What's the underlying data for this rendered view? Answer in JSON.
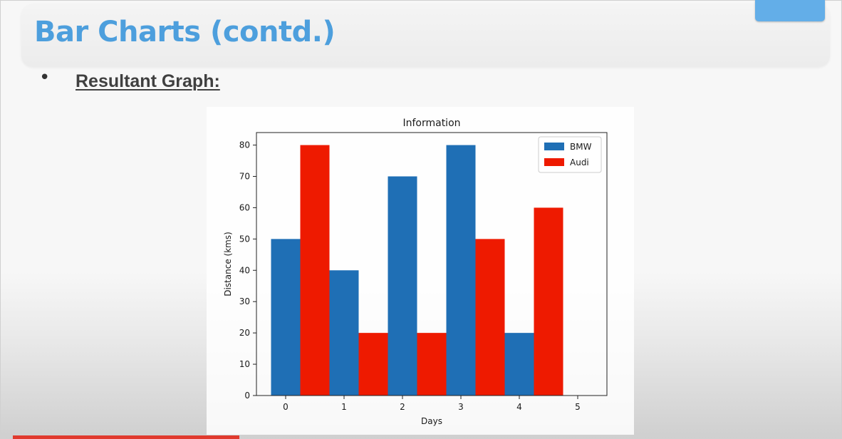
{
  "slide": {
    "title": "Bar Charts (contd.)",
    "bullet_symbol": "•",
    "subheading": "Resultant Graph:"
  },
  "colors": {
    "title": "#4d9fdd",
    "bmw": "#1f6fb5",
    "audi": "#ee1a00",
    "accent_tab": "#63aee8",
    "progress_bar": "#e03a2e"
  },
  "chart_data": {
    "type": "bar",
    "title": "Information",
    "xlabel": "Days",
    "ylabel": "Distance (kms)",
    "xlim": [
      -0.5,
      5.5
    ],
    "ylim": [
      0,
      84
    ],
    "xticks": [
      0,
      1,
      2,
      3,
      4,
      5
    ],
    "yticks": [
      0,
      10,
      20,
      30,
      40,
      50,
      60,
      70,
      80
    ],
    "legend_position": "upper right",
    "bar_width": 0.5,
    "series": [
      {
        "name": "BMW",
        "color": "#1f6fb5",
        "x": [
          0,
          1,
          2,
          3,
          4
        ],
        "values": [
          50,
          40,
          70,
          80,
          20
        ]
      },
      {
        "name": "Audi",
        "color": "#ee1a00",
        "x": [
          0.5,
          1.5,
          2.5,
          3.5,
          4.5
        ],
        "values": [
          80,
          20,
          20,
          50,
          60
        ]
      }
    ]
  }
}
